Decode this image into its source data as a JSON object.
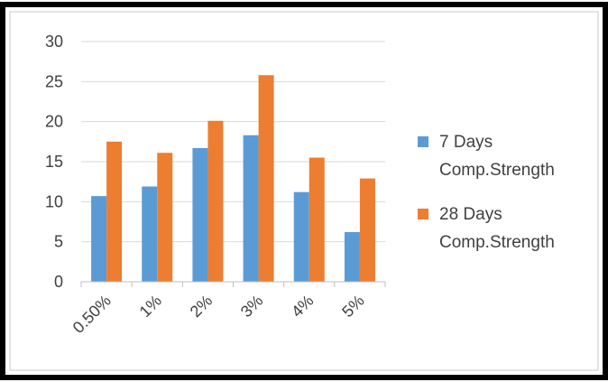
{
  "chart_data": {
    "type": "bar",
    "title": "",
    "xlabel": "",
    "ylabel": "",
    "categories": [
      "0.50%",
      "1%",
      "2%",
      "3%",
      "4%",
      "5%"
    ],
    "series": [
      {
        "name": "7 Days Comp.Strength",
        "name_lines": [
          "7 Days",
          "Comp.Strength"
        ],
        "color": "#5b9bd5",
        "values": [
          10.7,
          11.9,
          16.7,
          18.3,
          11.2,
          6.2
        ]
      },
      {
        "name": "28 Days Comp.Strength",
        "name_lines": [
          "28 Days",
          "Comp.Strength"
        ],
        "color": "#ed7d31",
        "values": [
          17.5,
          16.1,
          20.1,
          25.8,
          15.5,
          12.9
        ]
      }
    ],
    "ylim": [
      0,
      30
    ],
    "yticks": [
      "0",
      "5",
      "10",
      "15",
      "20",
      "25",
      "30"
    ],
    "grid": true,
    "legend_position": "right"
  }
}
